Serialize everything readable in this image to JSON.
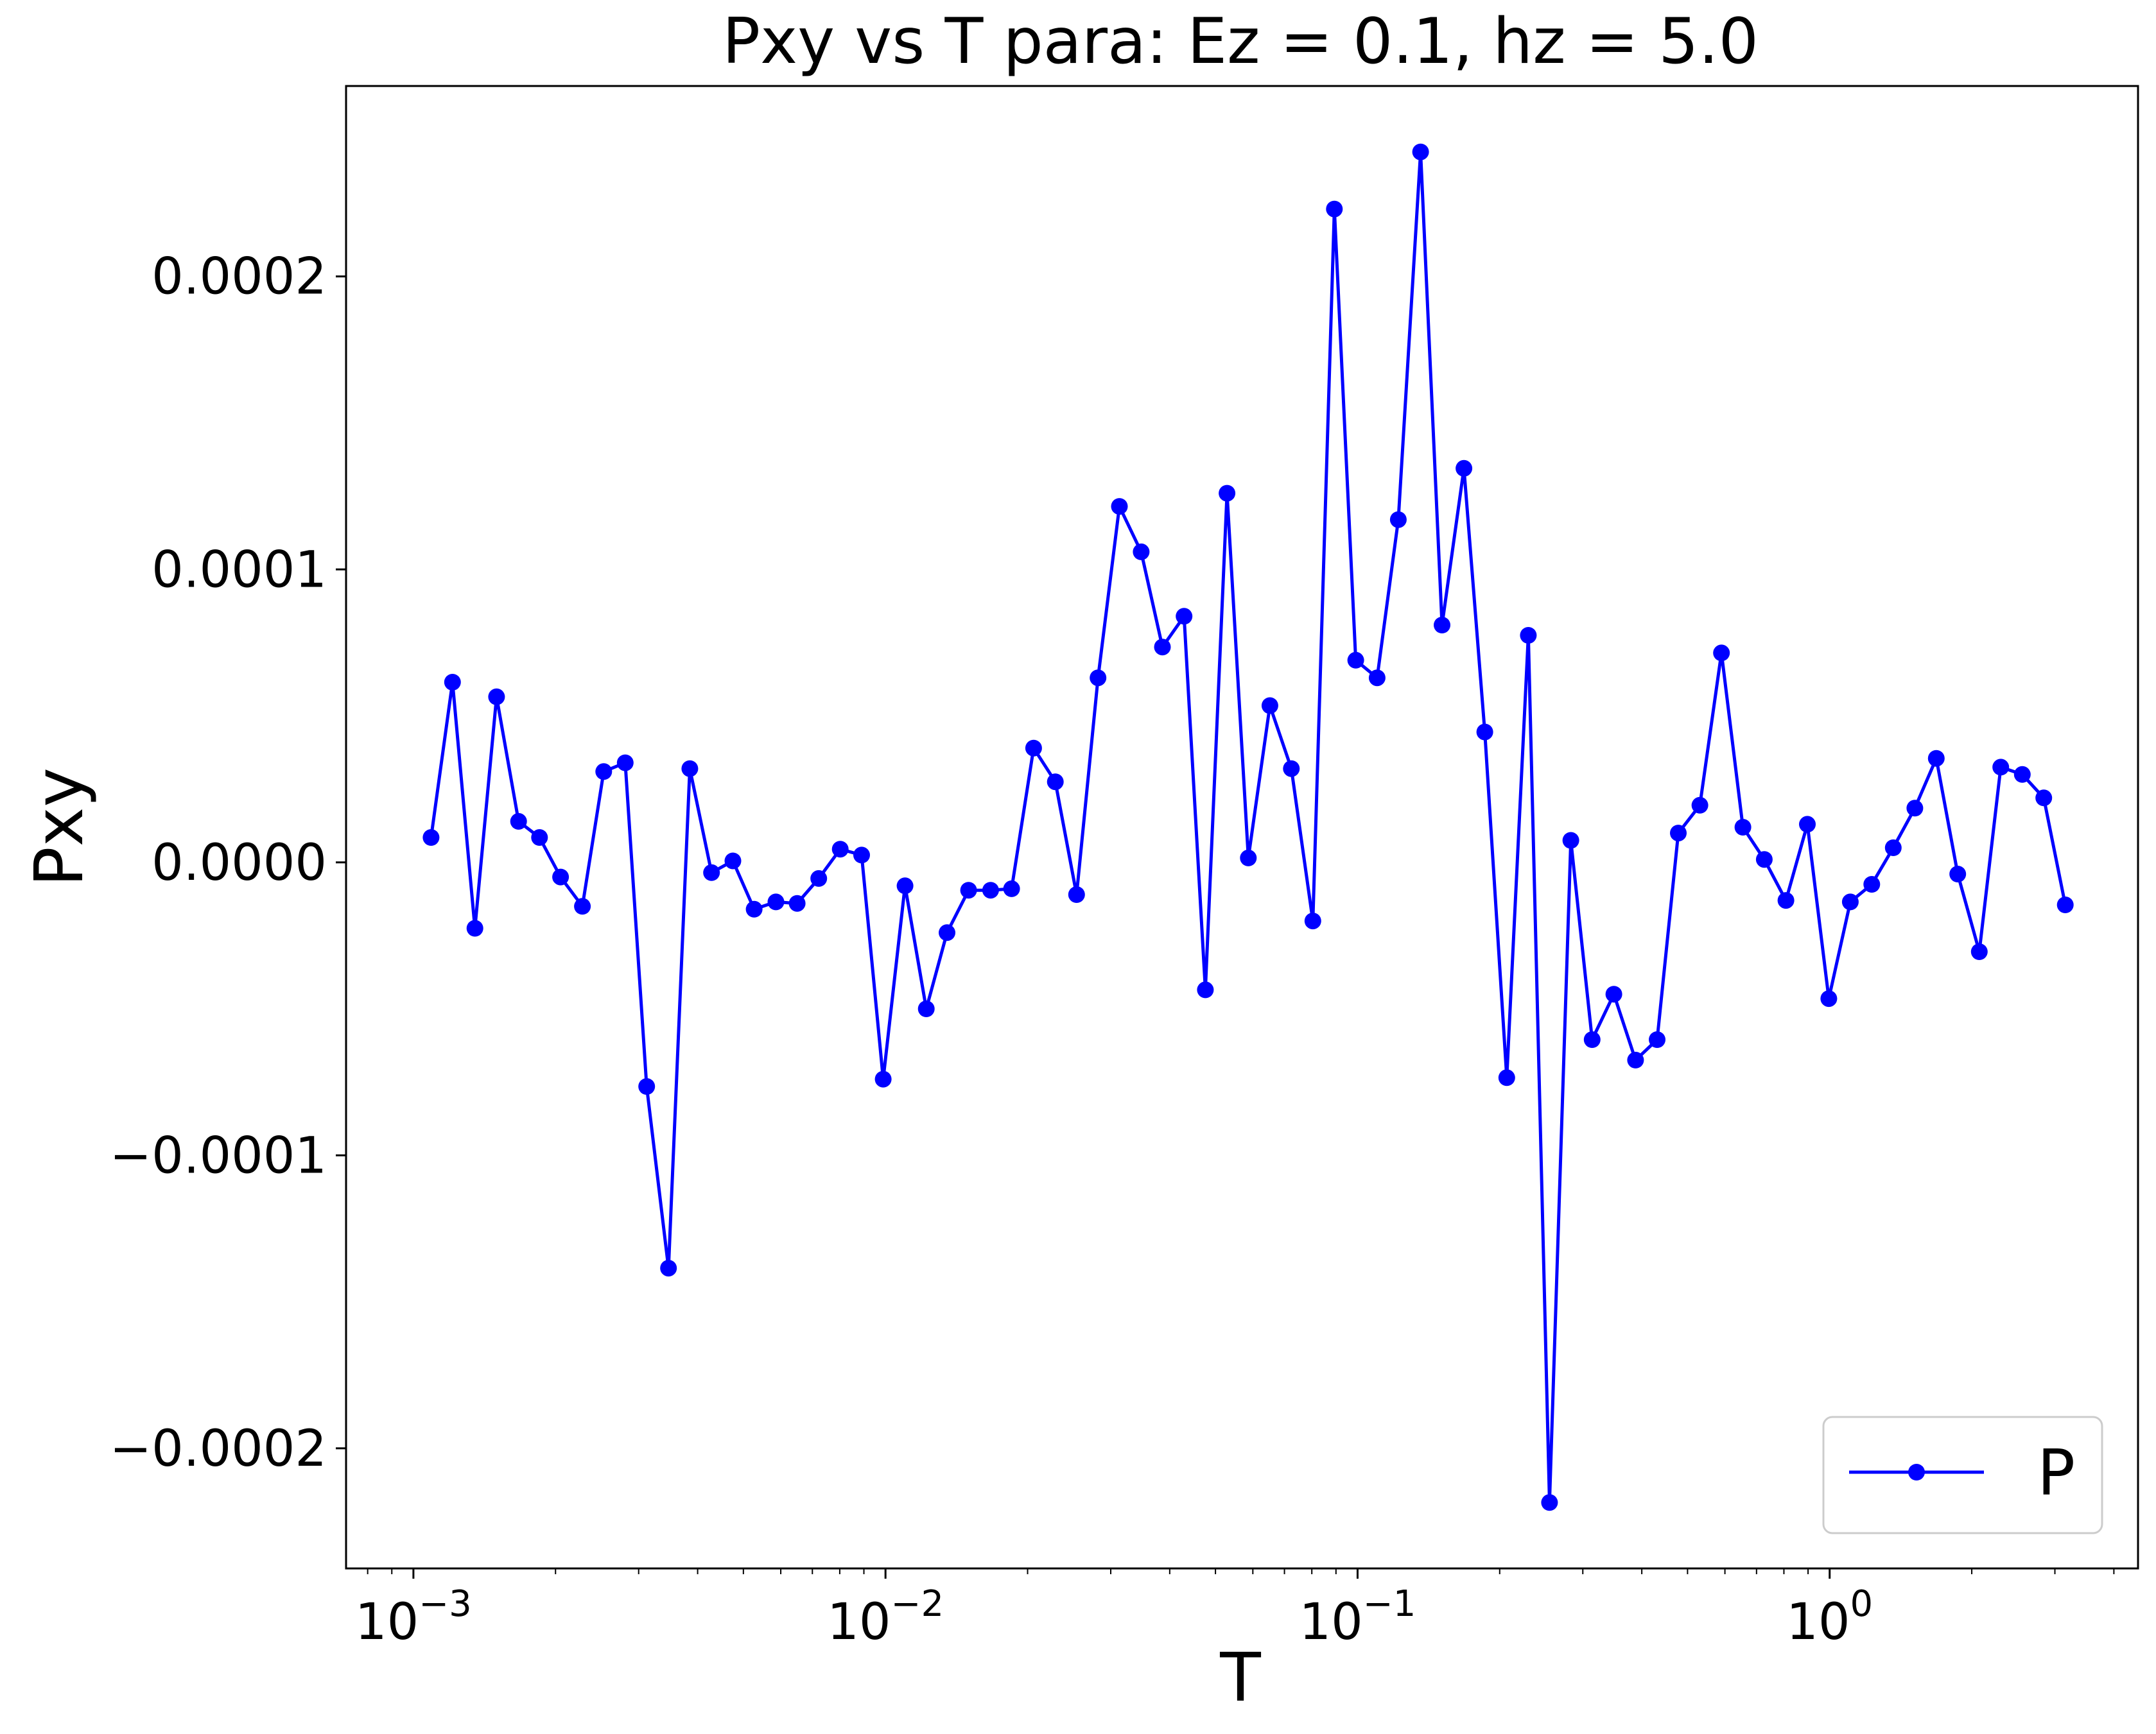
{
  "chart_data": {
    "type": "line",
    "title": "Pxy vs T para: Ez = 0.1, hz = 5.0",
    "xlabel": "T",
    "ylabel": "Pxy",
    "xscale": "log",
    "xlim": [
      0.00072,
      4.5
    ],
    "ylim": [
      -0.000241,
      0.000265
    ],
    "x_ticks": [
      {
        "value": 0.001,
        "base": "10",
        "exp": "−3"
      },
      {
        "value": 0.01,
        "base": "10",
        "exp": "−2"
      },
      {
        "value": 0.1,
        "base": "10",
        "exp": "−1"
      },
      {
        "value": 1,
        "base": "10",
        "exp": "0"
      }
    ],
    "y_ticks": [
      {
        "value": 0.0002,
        "label": "0.0002"
      },
      {
        "value": 0.0001,
        "label": "0.0001"
      },
      {
        "value": 0.0,
        "label": "0.0000"
      },
      {
        "value": -0.0001,
        "label": "−0.0001"
      },
      {
        "value": -0.0002,
        "label": "−0.0002"
      }
    ],
    "legend": {
      "position": "lower-right",
      "label": "P"
    },
    "grid": false,
    "color": "#0000ff",
    "series": [
      {
        "name": "P",
        "x": [
          0.00109,
          0.00121,
          0.00135,
          0.0015,
          0.00167,
          0.00185,
          0.00205,
          0.00228,
          0.00253,
          0.00281,
          0.00312,
          0.00347,
          0.00385,
          0.00428,
          0.00475,
          0.00527,
          0.00586,
          0.0065,
          0.00722,
          0.00802,
          0.0089,
          0.00989,
          0.011,
          0.0122,
          0.0135,
          0.015,
          0.0167,
          0.0185,
          0.0206,
          0.0229,
          0.0254,
          0.0282,
          0.0313,
          0.0348,
          0.0386,
          0.0429,
          0.0476,
          0.0529,
          0.0587,
          0.0652,
          0.0724,
          0.0804,
          0.0893,
          0.0991,
          0.11,
          0.122,
          0.136,
          0.151,
          0.168,
          0.186,
          0.207,
          0.23,
          0.255,
          0.283,
          0.314,
          0.349,
          0.388,
          0.431,
          0.478,
          0.531,
          0.59,
          0.655,
          0.727,
          0.808,
          0.897,
          0.996,
          1.106,
          1.228,
          1.364,
          1.515,
          1.682,
          1.868,
          2.075,
          2.304,
          2.559,
          2.842,
          3.156
        ],
        "y": [
          8.5e-06,
          6.15e-05,
          -2.25e-05,
          5.65e-05,
          1.4e-05,
          8.5e-06,
          -5e-06,
          -1.5e-05,
          3.1e-05,
          3.4e-05,
          -7.65e-05,
          -0.0001385,
          3.2e-05,
          -3.5e-06,
          5e-07,
          -1.6e-05,
          -1.35e-05,
          -1.4e-05,
          -5.5e-06,
          4.5e-06,
          2.5e-06,
          -7.4e-05,
          -8e-06,
          -5e-05,
          -2.4e-05,
          -9.5e-06,
          -9.5e-06,
          -9e-06,
          3.9e-05,
          2.75e-05,
          -1.1e-05,
          6.3e-05,
          0.0001215,
          0.000106,
          7.35e-05,
          8.4e-05,
          -4.35e-05,
          0.000126,
          1.5e-06,
          5.35e-05,
          3.2e-05,
          -2e-05,
          0.000223,
          6.9e-05,
          6.3e-05,
          0.000117,
          0.0002425,
          8.1e-05,
          0.0001345,
          4.45e-05,
          -7.35e-05,
          7.75e-05,
          -0.0002185,
          7.5e-06,
          -6.05e-05,
          -4.5e-05,
          -6.75e-05,
          -6.05e-05,
          1e-05,
          1.95e-05,
          7.15e-05,
          1.2e-05,
          1e-06,
          -1.3e-05,
          1.3e-05,
          -4.65e-05,
          -1.35e-05,
          -7.5e-06,
          5e-06,
          1.85e-05,
          3.55e-05,
          -4e-06,
          -3.05e-05,
          3.25e-05,
          3e-05,
          2.2e-05,
          -1.45e-05
        ]
      }
    ]
  }
}
